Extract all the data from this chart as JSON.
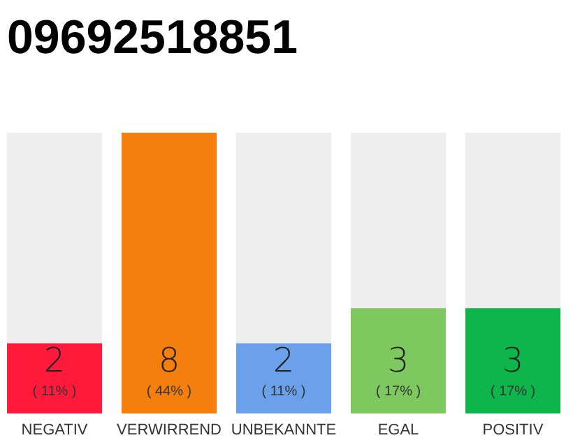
{
  "chart_data": {
    "type": "bar",
    "title": "09692518851",
    "categories": [
      "NEGATIV",
      "VERWIRREND",
      "UNBEKANNTE",
      "EGAL",
      "POSITIV"
    ],
    "values": [
      2,
      8,
      2,
      3,
      3
    ],
    "colors": [
      "#ff1a3c",
      "#f57f0c",
      "#6aa1ea",
      "#7ec95f",
      "#0db54a"
    ],
    "ylim": [
      0,
      8
    ],
    "tick_labels": "x",
    "data_labels": true,
    "annotations": [
      "( 11% )",
      "( 44% )",
      "( 11% )",
      "( 17% )",
      "( 17% )"
    ]
  }
}
